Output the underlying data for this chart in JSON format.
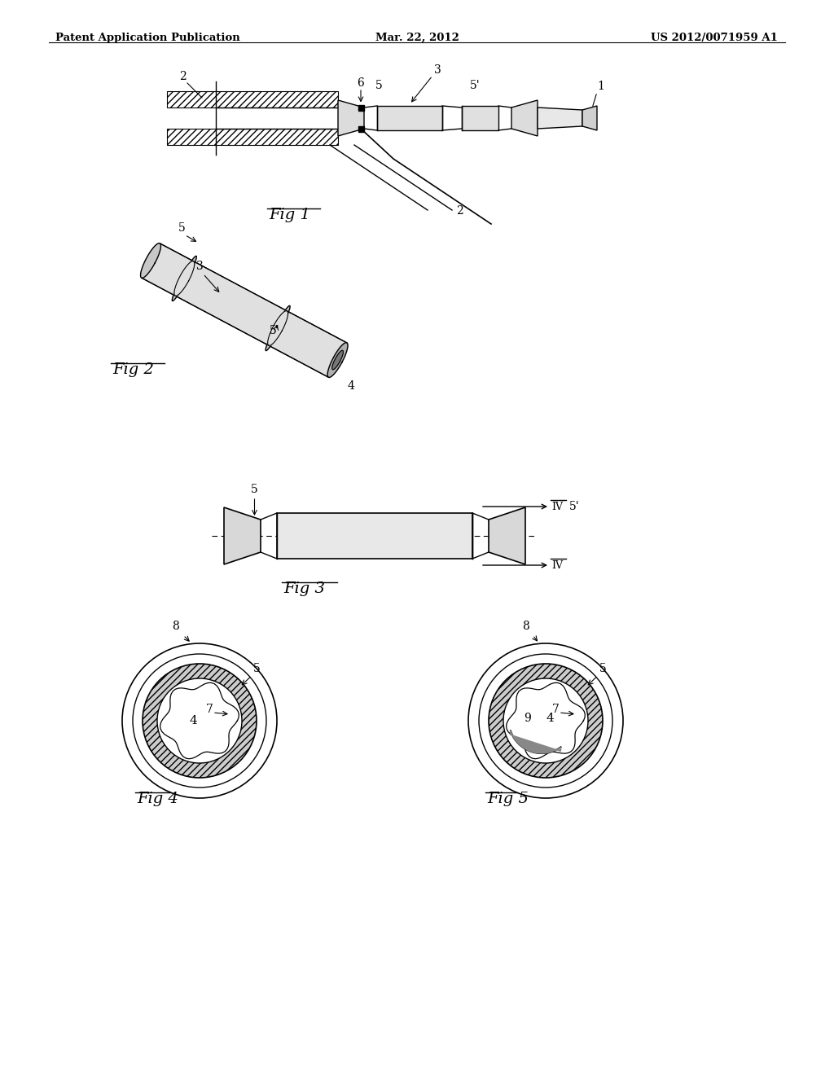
{
  "bg_color": "#ffffff",
  "header_left": "Patent Application Publication",
  "header_center": "Mar. 22, 2012",
  "header_right": "US 2012/0071959 A1",
  "line_color": "#000000",
  "gray_light": "#e8e8e8",
  "gray_mid": "#d0d0d0",
  "gray_dark": "#a0a0a0"
}
